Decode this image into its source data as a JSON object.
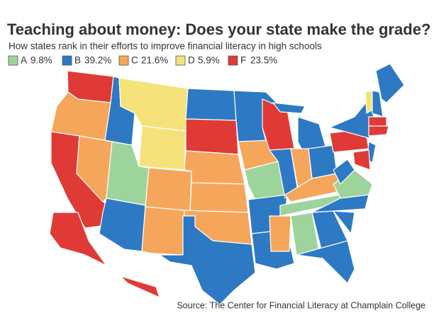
{
  "header": {
    "title": "Teaching about money: Does your state make the grade?",
    "subtitle": "How states rank in their efforts to improve financial literacy in high schools"
  },
  "legend": {
    "items": [
      {
        "grade": "A",
        "label": "9.8%",
        "color": "#9dd49b"
      },
      {
        "grade": "B",
        "label": "39.2%",
        "color": "#2d79c4"
      },
      {
        "grade": "C",
        "label": "21.6%",
        "color": "#f5a65b"
      },
      {
        "grade": "D",
        "label": "5.9%",
        "color": "#f5e27a"
      },
      {
        "grade": "F",
        "label": "23.5%",
        "color": "#df3a35"
      }
    ]
  },
  "source": "Source: The Center for Financial Literacy at Champlain College"
}
